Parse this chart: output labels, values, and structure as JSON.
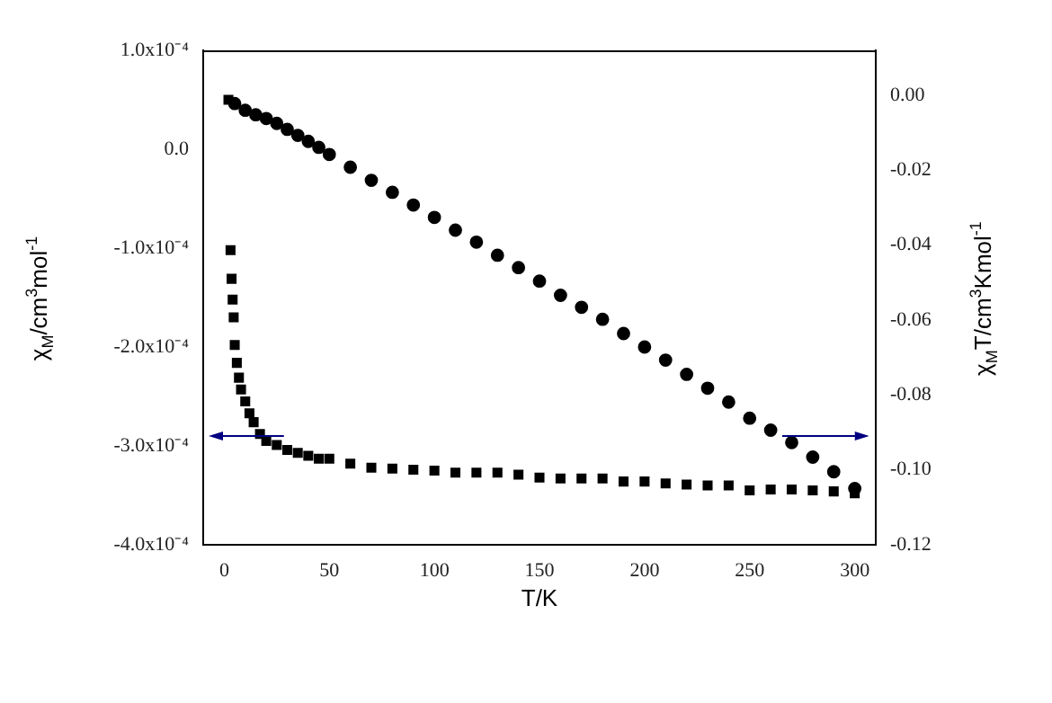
{
  "chart_data": {
    "type": "scatter",
    "xlabel": "T/K",
    "ylabel": "χ$_{M}$/cm$^{3}$mol$^{-1}$",
    "y2label": "χ$_{M}$T/cm$^{3}$Kmol$^{-1}$",
    "xlim": [
      -10,
      310
    ],
    "xticks": [
      0,
      50,
      100,
      150,
      200,
      250,
      300
    ],
    "ylim": [
      -0.0004,
      0.0001
    ],
    "yticks": [
      {
        "value": -0.0004,
        "label": "-4.0x10⁻⁴"
      },
      {
        "value": -0.0003,
        "label": "-3.0x10⁻⁴"
      },
      {
        "value": -0.0002,
        "label": "-2.0x10⁻⁴"
      },
      {
        "value": -0.0001,
        "label": "-1.0x10⁻⁴"
      },
      {
        "value": 0,
        "label": "0.0"
      },
      {
        "value": 0.0001,
        "label": "1.0x10⁻⁴"
      }
    ],
    "y2lim": [
      -0.12,
      0.012
    ],
    "y2ticks": [
      {
        "value": -0.12,
        "label": "-0.12"
      },
      {
        "value": -0.1,
        "label": "-0.10"
      },
      {
        "value": -0.08,
        "label": "-0.08"
      },
      {
        "value": -0.06,
        "label": "-0.06"
      },
      {
        "value": -0.04,
        "label": "-0.04"
      },
      {
        "value": -0.02,
        "label": "-0.02"
      },
      {
        "value": 0,
        "label": "0.00"
      }
    ],
    "grid": false,
    "legend": false,
    "series": [
      {
        "color": "#000000",
        "marker": "square",
        "axis": "y",
        "x": [
          2,
          3,
          3.5,
          4,
          4.5,
          5,
          6,
          7,
          8,
          10,
          12,
          14,
          17,
          20,
          25,
          30,
          35,
          40,
          45,
          50,
          60,
          70,
          80,
          90,
          100,
          110,
          120,
          130,
          140,
          150,
          160,
          170,
          180,
          190,
          200,
          210,
          220,
          230,
          240,
          250,
          260,
          270,
          280,
          290,
          300
        ],
        "values": [
          5e-05,
          -0.000102,
          -0.000131,
          -0.000152,
          -0.00017,
          -0.000198,
          -0.000216,
          -0.000231,
          -0.000243,
          -0.000255,
          -0.000267,
          -0.000276,
          -0.000288,
          -0.000295,
          -0.000299,
          -0.000304,
          -0.000307,
          -0.00031,
          -0.000313,
          -0.000313,
          -0.000318,
          -0.000322,
          -0.000323,
          -0.000324,
          -0.000325,
          -0.000327,
          -0.000327,
          -0.000327,
          -0.000329,
          -0.000332,
          -0.000333,
          -0.000333,
          -0.000333,
          -0.000336,
          -0.000336,
          -0.000338,
          -0.000339,
          -0.00034,
          -0.00034,
          -0.000345,
          -0.000344,
          -0.000344,
          -0.000345,
          -0.000346,
          -0.000348
        ]
      },
      {
        "color": "#000000",
        "marker": "circle",
        "axis": "y2",
        "x": [
          5,
          10,
          15,
          20,
          25,
          30,
          35,
          40,
          45,
          50,
          60,
          70,
          80,
          90,
          100,
          110,
          120,
          130,
          140,
          150,
          160,
          170,
          180,
          190,
          200,
          210,
          220,
          230,
          240,
          250,
          260,
          270,
          280,
          290,
          300
        ],
        "values": [
          -0.0022,
          -0.004,
          -0.0052,
          -0.0062,
          -0.0075,
          -0.0091,
          -0.0107,
          -0.0123,
          -0.0139,
          -0.0158,
          -0.0192,
          -0.0227,
          -0.0259,
          -0.0293,
          -0.0326,
          -0.036,
          -0.0392,
          -0.0427,
          -0.046,
          -0.0496,
          -0.0534,
          -0.0566,
          -0.0598,
          -0.0636,
          -0.0672,
          -0.0707,
          -0.0745,
          -0.0782,
          -0.0819,
          -0.0862,
          -0.0894,
          -0.0927,
          -0.0966,
          -0.1005,
          -0.105
        ]
      }
    ]
  }
}
